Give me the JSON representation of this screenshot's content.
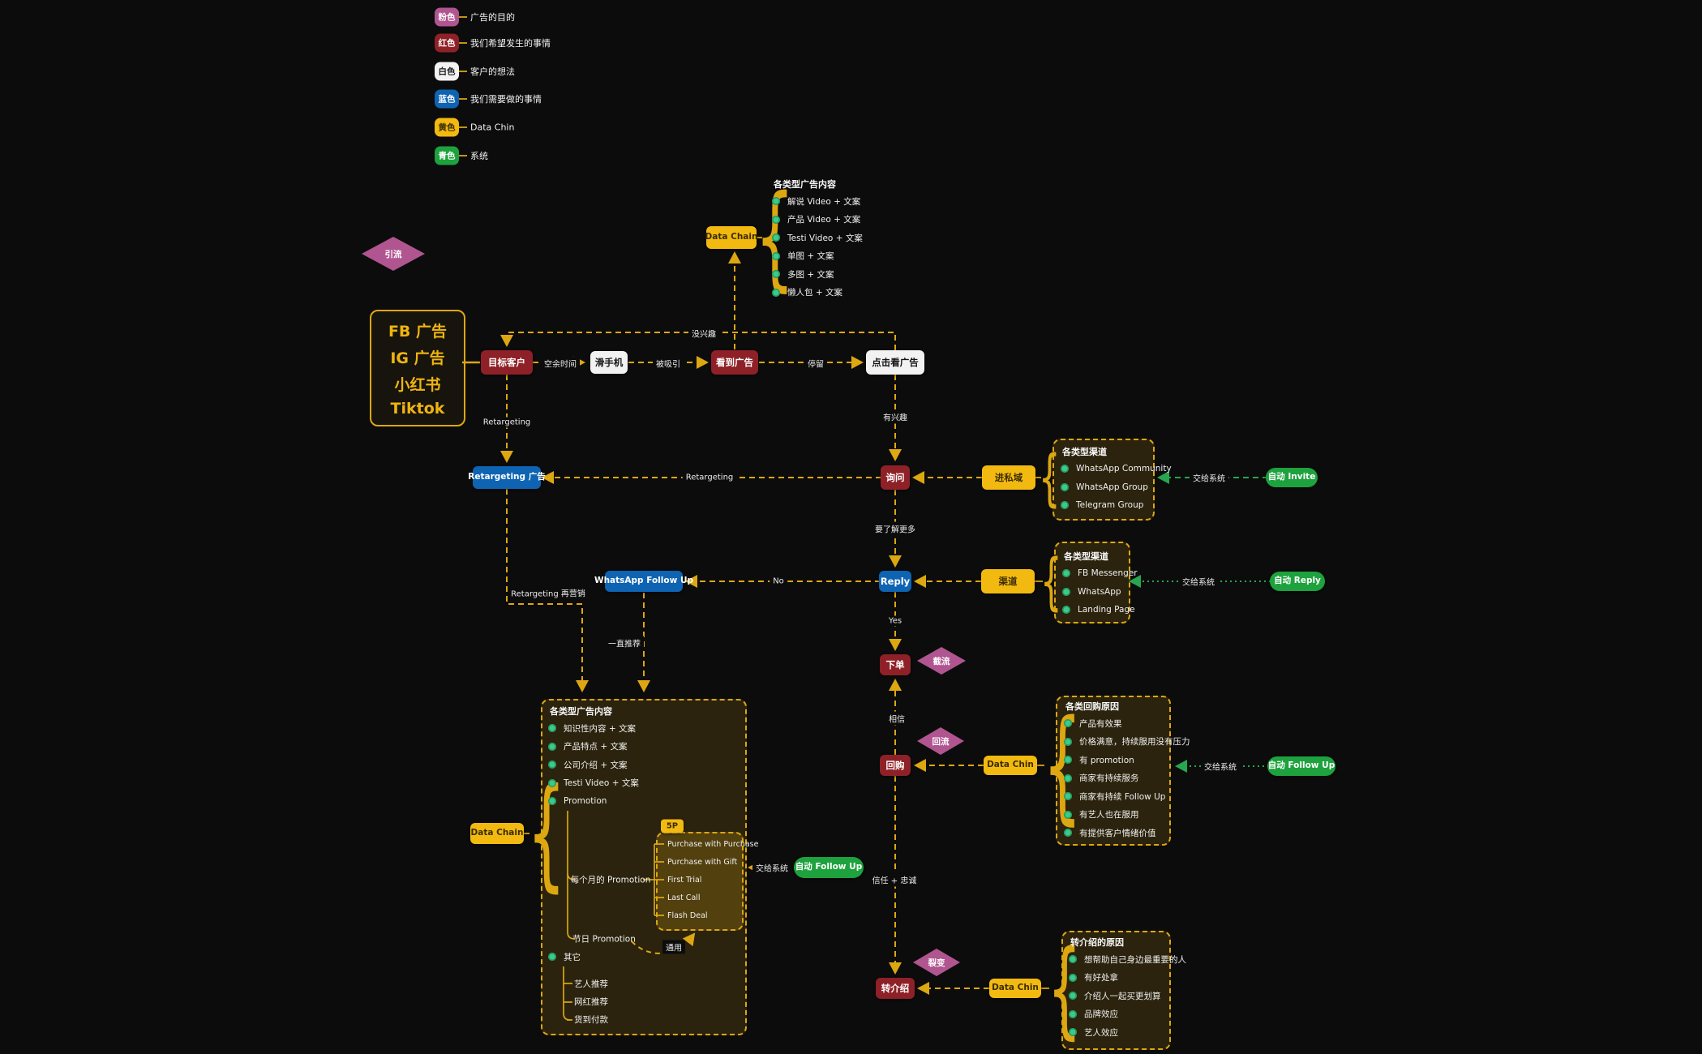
{
  "colors": {
    "background": "#0c0c0c",
    "red_node": "#8e2127",
    "white_node": "#f2f2f2",
    "blue_node": "#0e63b2",
    "yellow_node": "#f2ba11",
    "green_node": "#1da23d",
    "pink_diamond": "#b05590",
    "connector_yellow": "#dda712",
    "connector_green": "#27a550",
    "list_dot": "#3dc98b"
  },
  "legend": {
    "items": [
      {
        "swatch": "粉色",
        "color": "#b05590",
        "text_color": "#ffffff",
        "label": "广告的目的"
      },
      {
        "swatch": "红色",
        "color": "#8e2127",
        "text_color": "#ffffff",
        "label": "我们希望发生的事情"
      },
      {
        "swatch": "白色",
        "color": "#f2f2f2",
        "text_color": "#1a1a1a",
        "label": "客户的想法"
      },
      {
        "swatch": "蓝色",
        "color": "#0e63b2",
        "text_color": "#ffffff",
        "label": "我们需要做的事情"
      },
      {
        "swatch": "黄色",
        "color": "#f2ba11",
        "text_color": "#3c2d00",
        "label": "Data Chin"
      },
      {
        "swatch": "青色",
        "color": "#1da23d",
        "text_color": "#ffffff",
        "label": "系统"
      }
    ]
  },
  "source_box": {
    "lines": [
      "FB 广告",
      "IG 广告",
      "小红书",
      "Tiktok"
    ]
  },
  "nodes": {
    "target_customer": "目标客户",
    "scroll_phone": "滑手机",
    "see_ad": "看到广告",
    "click_ad": "点击看广告",
    "data_chain_top": "Data Chain",
    "retargeting_ad": "Retargeting 广告",
    "inquiry": "询问",
    "enter_private": "进私域",
    "auto_invite": "自动 Invite",
    "whatsapp_follow_up": "WhatsApp Follow Up",
    "reply": "Reply",
    "channel": "渠道",
    "auto_reply": "自动 Reply",
    "place_order": "下单",
    "repurchase": "回购",
    "data_chin_repurchase": "Data Chin",
    "auto_follow_up_right": "自动 Follow Up",
    "referral": "转介绍",
    "data_chin_referral": "Data Chin",
    "data_chain_bottom": "Data Chain",
    "auto_follow_up_bottom": "自动 Follow Up"
  },
  "diamonds": {
    "lead_gen": "引流",
    "intercept": "截流",
    "reflow": "回流",
    "fission": "裂变"
  },
  "edge_labels": {
    "no_interest": "没兴趣",
    "free_time": "空余时间",
    "attracted": "被吸引",
    "stay": "停留",
    "interested": "有兴趣",
    "retargeting_down": "Retargeting",
    "retargeting_mid": "Retargeting",
    "retargeting_remarket": "Retargeting 再营销",
    "keep_recommend": "一直推荐",
    "want_more": "要了解更多",
    "no": "No",
    "yes": "Yes",
    "believe": "相信",
    "trust_loyalty": "信任 + 忠诚",
    "to_system_invite": "交给系统",
    "to_system_reply": "交给系统",
    "to_system_follow_right": "交给系统",
    "to_system_follow_bottom": "交给系统",
    "general": "通用"
  },
  "lists": {
    "ad_content_top": {
      "title": "各类型广告内容",
      "items": [
        "解说 Video + 文案",
        "产品 Video + 文案",
        "Testi Video + 文案",
        "单图 + 文案",
        "多图 + 文案",
        "懒人包 + 文案"
      ]
    },
    "channels_private": {
      "title": "各类型渠道",
      "items": [
        "WhatsApp Community",
        "WhatsApp Group",
        "Telegram Group"
      ]
    },
    "channels_reply": {
      "title": "各类型渠道",
      "items": [
        "FB Messenger",
        "WhatsApp",
        "Landing Page"
      ]
    },
    "repurchase_reasons": {
      "title": "各类回购原因",
      "items": [
        "产品有效果",
        "价格满意，持续服用没有压力",
        "有 promotion",
        "商家有持续服务",
        "商家有持续 Follow Up",
        "有艺人也在服用",
        "有提供客户情绪价值"
      ]
    },
    "referral_reasons": {
      "title": "转介绍的原因",
      "items": [
        "想帮助自己身边最重要的人",
        "有好处拿",
        "介绍人一起买更划算",
        "品牌效应",
        "艺人效应"
      ]
    },
    "ad_content_bottom": {
      "title": "各类型广告内容",
      "items": [
        "知识性内容 + 文案",
        "产品特点 + 文案",
        "公司介绍 + 文案",
        "Testi Video + 文案",
        "Promotion"
      ]
    },
    "sp": {
      "tag": "5P",
      "items": [
        "Purchase with Purchase",
        "Purchase with Gift",
        "First Trial",
        "Last Call",
        "Flash Deal"
      ]
    },
    "promo_tree": {
      "monthly": "每个月的 Promotion",
      "festival": "节日 Promotion",
      "other": "其它",
      "other_items": [
        "艺人推荐",
        "网红推荐",
        "货到付款"
      ]
    }
  }
}
